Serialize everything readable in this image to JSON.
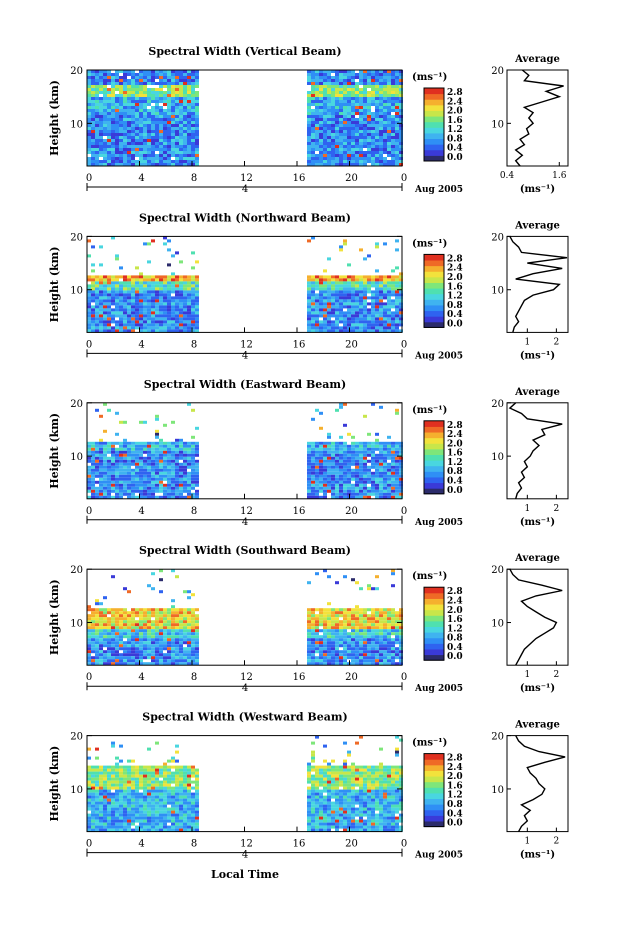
{
  "colors": {
    "scale": [
      "#2b2b6b",
      "#3a3ad8",
      "#2f63f0",
      "#2f8ff5",
      "#3fb3f0",
      "#49d6e0",
      "#4fe0b0",
      "#7ee67a",
      "#c8e64a",
      "#f2e23c",
      "#f5b02e",
      "#ef6a26",
      "#e03020"
    ],
    "line": "#000000"
  },
  "shared": {
    "x_ticks": [
      "0",
      "4",
      "8",
      "12",
      "16",
      "20",
      "0"
    ],
    "date_label": "Aug 2005",
    "day_label": "4",
    "y_label": "Height (km)",
    "colorbar_unit": "(ms⁻¹)",
    "colorbar_ticks": [
      "0.0",
      "0.4",
      "0.8",
      "1.2",
      "1.6",
      "2.0",
      "2.4",
      "2.8"
    ],
    "avg_title": "Average",
    "avg_unit": "(ms⁻¹)",
    "x_axis_title": "Local Time"
  },
  "panels": [
    {
      "title": "Spectral Width (Vertical Beam)",
      "avg_xticks": [
        "0.4",
        "1.6"
      ],
      "h_ticks": [
        "20",
        "10"
      ],
      "avg_yticks": [
        "20",
        "10"
      ]
    },
    {
      "title": "Spectral Width (Northward Beam)",
      "avg_xticks": [
        "1",
        "2"
      ],
      "h_ticks": [
        "20",
        "10"
      ],
      "avg_yticks": [
        "20",
        "10"
      ]
    },
    {
      "title": "Spectral Width (Eastward Beam)",
      "avg_xticks": [
        "1",
        "2"
      ],
      "h_ticks": [
        "20",
        "10"
      ],
      "avg_yticks": [
        "20",
        "10"
      ]
    },
    {
      "title": "Spectral Width (Southward Beam)",
      "avg_xticks": [
        "1",
        "2"
      ],
      "h_ticks": [
        "20",
        "10"
      ],
      "avg_yticks": [
        "20",
        "10"
      ]
    },
    {
      "title": "Spectral Width (Westward Beam)",
      "avg_xticks": [
        "1",
        "2"
      ],
      "h_ticks": [
        "20",
        "10"
      ],
      "avg_yticks": [
        "20",
        "10"
      ]
    }
  ],
  "chart_data": [
    {
      "type": "heatmap",
      "title": "Spectral Width (Vertical Beam)",
      "xlabel": "",
      "ylabel": "Height (km)",
      "xlim": [
        0,
        24
      ],
      "ylim": [
        2,
        20
      ],
      "data_gap_hours": [
        8.5,
        16.5
      ],
      "clim": [
        0,
        2.8
      ],
      "avg_profile": {
        "xlim": [
          0.4,
          1.8
        ],
        "heights": [
          2,
          3,
          4,
          5,
          6,
          7,
          8,
          9,
          10,
          11,
          12,
          13,
          14,
          15,
          16,
          17,
          18,
          19,
          20
        ],
        "values": [
          0.7,
          0.6,
          0.75,
          0.6,
          0.8,
          0.7,
          0.9,
          0.85,
          1.0,
          0.9,
          1.0,
          0.8,
          1.2,
          1.6,
          1.3,
          1.7,
          0.8,
          0.9,
          0.75
        ]
      }
    },
    {
      "type": "heatmap",
      "title": "Spectral Width (Northward Beam)",
      "xlabel": "",
      "ylabel": "Height (km)",
      "xlim": [
        0,
        24
      ],
      "ylim": [
        2,
        20
      ],
      "data_gap_hours": [
        8.5,
        16.5
      ],
      "clim": [
        0,
        2.8
      ],
      "avg_profile": {
        "xlim": [
          0.3,
          2.4
        ],
        "heights": [
          2,
          3,
          4,
          5,
          6,
          7,
          8,
          9,
          10,
          11,
          12,
          13,
          14,
          15,
          16,
          17,
          18,
          19,
          20
        ],
        "values": [
          0.5,
          0.55,
          0.7,
          0.6,
          0.7,
          0.8,
          0.9,
          1.2,
          1.9,
          2.1,
          0.6,
          1.2,
          2.2,
          1.0,
          2.4,
          0.8,
          0.7,
          0.5,
          0.4
        ]
      }
    },
    {
      "type": "heatmap",
      "title": "Spectral Width (Eastward Beam)",
      "xlabel": "",
      "ylabel": "Height (km)",
      "xlim": [
        0,
        24
      ],
      "ylim": [
        2,
        20
      ],
      "data_gap_hours": [
        8.5,
        16.5
      ],
      "clim": [
        0,
        2.8
      ],
      "avg_profile": {
        "xlim": [
          0.3,
          2.4
        ],
        "heights": [
          2,
          3,
          4,
          5,
          6,
          7,
          8,
          9,
          10,
          11,
          12,
          13,
          14,
          15,
          16,
          17,
          18,
          19,
          20
        ],
        "values": [
          0.6,
          0.65,
          0.8,
          0.7,
          0.9,
          0.8,
          1.0,
          0.9,
          1.1,
          1.2,
          1.4,
          1.2,
          1.6,
          1.5,
          2.2,
          1.0,
          0.8,
          0.4,
          0.6
        ]
      }
    },
    {
      "type": "heatmap",
      "title": "Spectral Width (Southward Beam)",
      "xlabel": "",
      "ylabel": "Height (km)",
      "xlim": [
        0,
        24
      ],
      "ylim": [
        2,
        20
      ],
      "data_gap_hours": [
        8.5,
        16.5
      ],
      "clim": [
        0,
        2.8
      ],
      "avg_profile": {
        "xlim": [
          0.3,
          2.4
        ],
        "heights": [
          2,
          3,
          4,
          5,
          6,
          7,
          8,
          9,
          10,
          11,
          12,
          13,
          14,
          15,
          16,
          17,
          18,
          19,
          20
        ],
        "values": [
          0.6,
          0.7,
          0.8,
          0.9,
          1.1,
          1.3,
          1.6,
          1.9,
          2.0,
          1.6,
          1.3,
          1.0,
          0.8,
          1.3,
          2.2,
          1.5,
          0.7,
          0.5,
          0.4
        ]
      }
    },
    {
      "type": "heatmap",
      "title": "Spectral Width (Westward Beam)",
      "xlabel": "",
      "ylabel": "Height (km)",
      "xlim": [
        0,
        24
      ],
      "ylim": [
        2,
        20
      ],
      "data_gap_hours": [
        8.5,
        16.5
      ],
      "clim": [
        0,
        2.8
      ],
      "avg_profile": {
        "xlim": [
          0.3,
          2.4
        ],
        "heights": [
          2,
          3,
          4,
          5,
          6,
          7,
          8,
          9,
          10,
          11,
          12,
          13,
          14,
          15,
          16,
          17,
          18,
          19,
          20
        ],
        "values": [
          0.7,
          0.8,
          1.0,
          0.9,
          1.1,
          0.8,
          1.2,
          1.5,
          1.6,
          1.4,
          1.3,
          1.1,
          1.0,
          1.6,
          2.3,
          1.4,
          0.9,
          0.7,
          0.6
        ]
      }
    }
  ]
}
